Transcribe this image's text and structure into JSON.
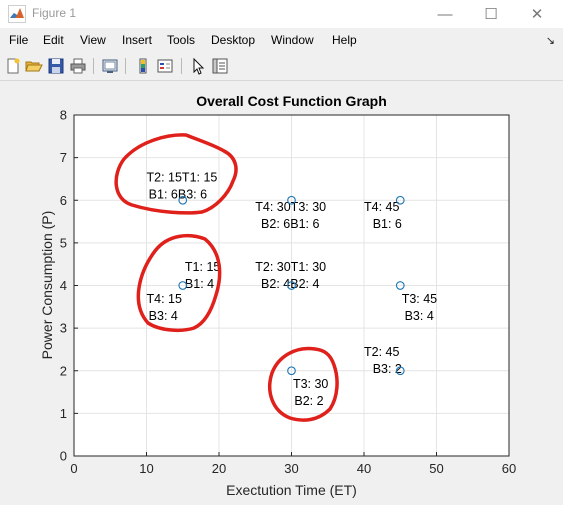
{
  "window": {
    "title": "Figure 1",
    "minimize_glyph": "—",
    "maximize_glyph": "☐",
    "close_glyph": "✕"
  },
  "menubar": {
    "items": [
      "File",
      "Edit",
      "View",
      "Insert",
      "Tools",
      "Desktop",
      "Window",
      "Help"
    ],
    "dock_arrow": "↘"
  },
  "toolbar": {
    "buttons": [
      "new-figure-icon",
      "open-file-icon",
      "save-icon",
      "print-icon",
      "link-plot-icon",
      "colorbar-icon",
      "legend-icon",
      "edit-plot-icon",
      "property-inspector-icon"
    ]
  },
  "colors": {
    "marker": "#1f77b4",
    "annotation": "#e0201b",
    "grid": "#e4e4e4"
  },
  "chart_data": {
    "type": "scatter",
    "title": "Overall Cost Function Graph",
    "xlabel": "Exectution Time (ET)",
    "ylabel": "Power Consumption (P)",
    "xlim": [
      0,
      60
    ],
    "ylim": [
      0,
      8
    ],
    "xticks": [
      "0",
      "10",
      "20",
      "30",
      "40",
      "50",
      "60"
    ],
    "yticks": [
      "0",
      "1",
      "2",
      "3",
      "4",
      "5",
      "6",
      "7",
      "8"
    ],
    "grid": true,
    "points": [
      {
        "x": 15,
        "y": 6
      },
      {
        "x": 30,
        "y": 6
      },
      {
        "x": 45,
        "y": 6
      },
      {
        "x": 15,
        "y": 4
      },
      {
        "x": 30,
        "y": 4
      },
      {
        "x": 45,
        "y": 4
      },
      {
        "x": 30,
        "y": 2
      },
      {
        "x": 45,
        "y": 2
      }
    ],
    "labels": [
      {
        "x": 10,
        "y": 6.55,
        "text": "T2: 15T1: 15"
      },
      {
        "x": 10.3,
        "y": 6.15,
        "text": "B1: 6B3: 6"
      },
      {
        "x": 25,
        "y": 5.85,
        "text": "T4: 30T3: 30"
      },
      {
        "x": 25.8,
        "y": 5.45,
        "text": "B2: 6B1: 6"
      },
      {
        "x": 40,
        "y": 5.85,
        "text": "T4: 45"
      },
      {
        "x": 41.2,
        "y": 5.45,
        "text": "B1: 6"
      },
      {
        "x": 15.3,
        "y": 4.45,
        "text": "T1: 15"
      },
      {
        "x": 15.3,
        "y": 4.05,
        "text": "B1: 4"
      },
      {
        "x": 25,
        "y": 4.45,
        "text": "T2: 30T1: 30"
      },
      {
        "x": 25.8,
        "y": 4.05,
        "text": "B2: 4B2: 4"
      },
      {
        "x": 45.2,
        "y": 3.7,
        "text": "T3: 45"
      },
      {
        "x": 45.6,
        "y": 3.3,
        "text": "B3: 4"
      },
      {
        "x": 10,
        "y": 3.7,
        "text": "T4: 15"
      },
      {
        "x": 10.3,
        "y": 3.3,
        "text": "B3: 4"
      },
      {
        "x": 40,
        "y": 2.45,
        "text": "T2: 45"
      },
      {
        "x": 41.2,
        "y": 2.05,
        "text": "B3: 2"
      },
      {
        "x": 30.2,
        "y": 1.7,
        "text": "T3: 30"
      },
      {
        "x": 30.4,
        "y": 1.3,
        "text": "B2: 2"
      }
    ]
  }
}
